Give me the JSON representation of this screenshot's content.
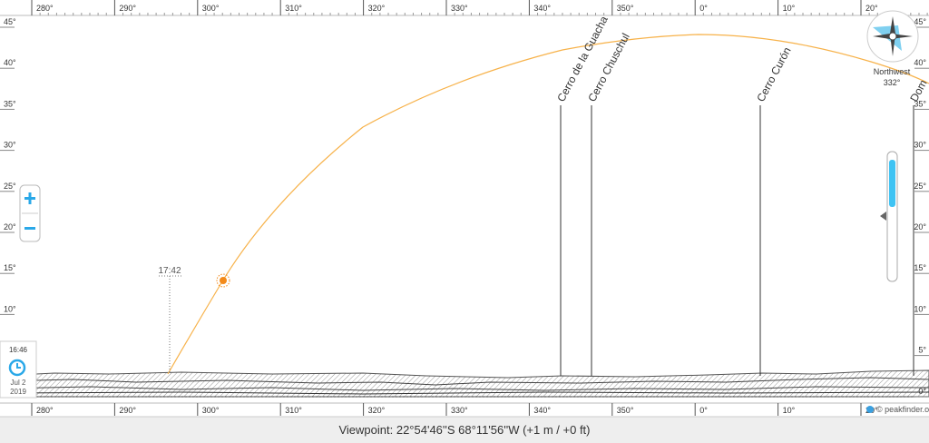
{
  "azimuth_labels": [
    "280°",
    "290°",
    "300°",
    "310°",
    "320°",
    "330°",
    "340°",
    "350°",
    "0°",
    "10°",
    "20°"
  ],
  "elevation_labels": [
    "45°",
    "40°",
    "35°",
    "30°",
    "25°",
    "20°",
    "15°",
    "10°",
    "5°",
    "0°"
  ],
  "peaks": [
    {
      "label": "Cerro de la Guacha"
    },
    {
      "label": "Cerro Chuschul"
    },
    {
      "label": "Cerro Curón"
    },
    {
      "label": "Dom"
    }
  ],
  "compass": {
    "direction": "Northwest",
    "bearing": "332°"
  },
  "sun": {
    "time": "17:42"
  },
  "clock": {
    "time": "16:46",
    "date": "Jul 2",
    "year": "2019"
  },
  "footer": {
    "viewpoint": "Viewpoint: 22°54'46''S 68°11'56''W (+1 m / +0 ft)",
    "credit": "© peakfinder.org"
  }
}
